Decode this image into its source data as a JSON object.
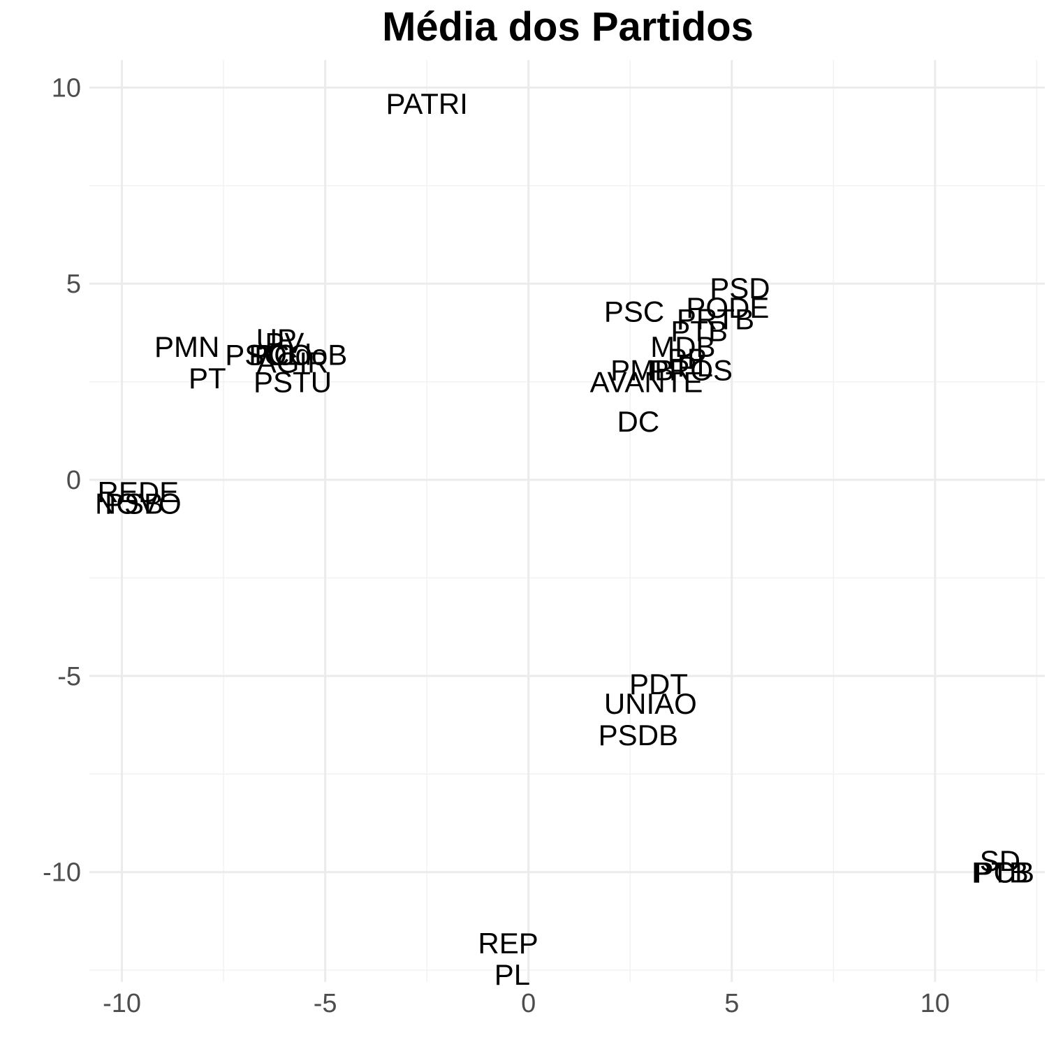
{
  "chart_data": {
    "type": "scatter",
    "title": "Média dos Partidos",
    "xlabel": "",
    "ylabel": "",
    "xlim": [
      -10.8,
      12.7
    ],
    "ylim": [
      -12.8,
      10.7
    ],
    "x_ticks": [
      -10,
      -5,
      0,
      5,
      10
    ],
    "y_ticks": [
      10,
      5,
      0,
      -5,
      -10
    ],
    "x_minor": [
      -7.5,
      -2.5,
      2.5,
      7.5,
      12.5
    ],
    "y_minor": [
      7.5,
      2.5,
      -2.5,
      -7.5,
      -12.5
    ],
    "grid": true,
    "marker": "text-label",
    "points": [
      {
        "label": "PATRI",
        "x": -2.5,
        "y": 9.6
      },
      {
        "label": "PSD",
        "x": 5.2,
        "y": 4.9
      },
      {
        "label": "PODE",
        "x": 4.9,
        "y": 4.4
      },
      {
        "label": "PSC",
        "x": 2.6,
        "y": 4.3
      },
      {
        "label": "PRTB",
        "x": 4.6,
        "y": 4.1
      },
      {
        "label": "PTB",
        "x": 4.2,
        "y": 3.8
      },
      {
        "label": "MDB",
        "x": 3.8,
        "y": 3.4
      },
      {
        "label": "PP",
        "x": 3.9,
        "y": 3.1
      },
      {
        "label": "PL",
        "x": 4.1,
        "y": 2.9
      },
      {
        "label": "PMB",
        "x": 2.8,
        "y": 2.8
      },
      {
        "label": "PROS",
        "x": 4.0,
        "y": 2.8
      },
      {
        "label": "AVANTE",
        "x": 2.9,
        "y": 2.5
      },
      {
        "label": "DC",
        "x": 2.7,
        "y": 1.5
      },
      {
        "label": "PMN",
        "x": -8.4,
        "y": 3.4
      },
      {
        "label": "PSOL",
        "x": -6.5,
        "y": 3.2
      },
      {
        "label": "PV",
        "x": -6.0,
        "y": 3.5
      },
      {
        "label": "PCO",
        "x": -6.1,
        "y": 3.2
      },
      {
        "label": "PCdoB",
        "x": -5.6,
        "y": 3.2
      },
      {
        "label": "UP",
        "x": -6.2,
        "y": 3.6
      },
      {
        "label": "AGIR",
        "x": -5.8,
        "y": 3.0
      },
      {
        "label": "PT",
        "x": -7.9,
        "y": 2.6
      },
      {
        "label": "PSTU",
        "x": -5.8,
        "y": 2.5
      },
      {
        "label": "REDE",
        "x": -9.6,
        "y": -0.3
      },
      {
        "label": "PSB",
        "x": -9.7,
        "y": -0.6
      },
      {
        "label": "NOVO",
        "x": -9.6,
        "y": -0.6
      },
      {
        "label": "PDT",
        "x": 3.2,
        "y": -5.2
      },
      {
        "label": "UNIAO",
        "x": 3.0,
        "y": -5.7
      },
      {
        "label": "PSDB",
        "x": 2.7,
        "y": -6.5
      },
      {
        "label": "REP",
        "x": -0.5,
        "y": -11.8
      },
      {
        "label": "PL",
        "x": -0.4,
        "y": -12.6
      },
      {
        "label": "SD",
        "x": 11.6,
        "y": -9.7
      },
      {
        "label": "PCB",
        "x": 11.7,
        "y": -10.0
      },
      {
        "label": "PTB",
        "x": 11.6,
        "y": -10.0
      }
    ]
  }
}
